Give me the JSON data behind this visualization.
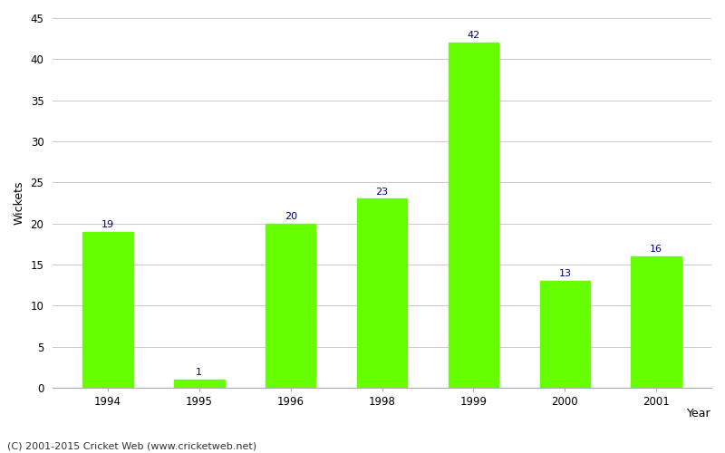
{
  "categories": [
    "1994",
    "1995",
    "1996",
    "1998",
    "1999",
    "2000",
    "2001"
  ],
  "values": [
    19,
    1,
    20,
    23,
    42,
    13,
    16
  ],
  "bar_color": "#66ff00",
  "bar_edge_color": "#66ff00",
  "ylabel": "Wickets",
  "xlabel_right": "Year",
  "ylim": [
    0,
    45
  ],
  "yticks": [
    0,
    5,
    10,
    15,
    20,
    25,
    30,
    35,
    40,
    45
  ],
  "annotation_color": "#000080",
  "annotation_fontsize": 8,
  "axis_label_fontsize": 9,
  "tick_fontsize": 8.5,
  "background_color": "#ffffff",
  "grid_color": "#cccccc",
  "footer_text": "(C) 2001-2015 Cricket Web (www.cricketweb.net)",
  "footer_fontsize": 8,
  "bar_width": 0.55
}
